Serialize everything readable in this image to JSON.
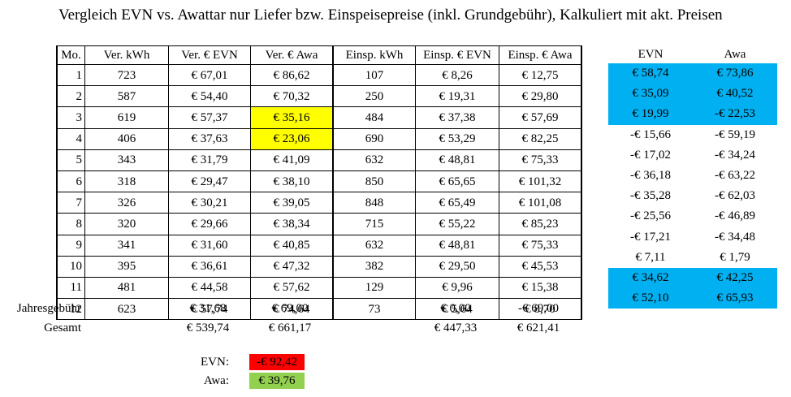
{
  "title": "Vergleich EVN vs. Awattar nur Liefer bzw. Einspeisepreise (inkl. Grundgebühr), Kalkuliert mit akt. Preisen",
  "headers": [
    "Mo.",
    "Ver. kWh",
    "Ver. € EVN",
    "Ver. € Awa",
    "Einsp. kWh",
    "Einsp. € EVN",
    "Einsp. € Awa"
  ],
  "rows": [
    [
      "1",
      "723",
      "€ 67,01",
      "€ 86,62",
      "107",
      "€ 8,26",
      "€ 12,75"
    ],
    [
      "2",
      "587",
      "€ 54,40",
      "€ 70,32",
      "250",
      "€ 19,31",
      "€ 29,80"
    ],
    [
      "3",
      "619",
      "€ 57,37",
      "€ 35,16",
      "484",
      "€ 37,38",
      "€ 57,69"
    ],
    [
      "4",
      "406",
      "€ 37,63",
      "€ 23,06",
      "690",
      "€ 53,29",
      "€ 82,25"
    ],
    [
      "5",
      "343",
      "€ 31,79",
      "€ 41,09",
      "632",
      "€ 48,81",
      "€ 75,33"
    ],
    [
      "6",
      "318",
      "€ 29,47",
      "€ 38,10",
      "850",
      "€ 65,65",
      "€ 101,32"
    ],
    [
      "7",
      "326",
      "€ 30,21",
      "€ 39,05",
      "848",
      "€ 65,49",
      "€ 101,08"
    ],
    [
      "8",
      "320",
      "€ 29,66",
      "€ 38,34",
      "715",
      "€ 55,22",
      "€ 85,23"
    ],
    [
      "9",
      "341",
      "€ 31,60",
      "€ 40,85",
      "632",
      "€ 48,81",
      "€ 75,33"
    ],
    [
      "10",
      "395",
      "€ 36,61",
      "€ 47,32",
      "382",
      "€ 29,50",
      "€ 45,53"
    ],
    [
      "11",
      "481",
      "€ 44,58",
      "€ 57,62",
      "129",
      "€ 9,96",
      "€ 15,38"
    ],
    [
      "12",
      "623",
      "€ 57,74",
      "€ 74,64",
      "73",
      "€ 5,64",
      "€ 8,70"
    ]
  ],
  "highlight_color": "#ffff00",
  "compare": {
    "headers": [
      "EVN",
      "Awa"
    ],
    "rows": [
      [
        "€ 58,74",
        "€ 73,86"
      ],
      [
        "€ 35,09",
        "€ 40,52"
      ],
      [
        "€ 19,99",
        "-€ 22,53"
      ],
      [
        "-€ 15,66",
        "-€ 59,19"
      ],
      [
        "-€ 17,02",
        "-€ 34,24"
      ],
      [
        "-€ 36,18",
        "-€ 63,22"
      ],
      [
        "-€ 35,28",
        "-€ 62,03"
      ],
      [
        "-€ 25,56",
        "-€ 46,89"
      ],
      [
        "-€ 17,21",
        "-€ 34,48"
      ],
      [
        "€ 7,11",
        "€ 1,79"
      ],
      [
        "€ 34,62",
        "€ 42,25"
      ],
      [
        "€ 52,10",
        "€ 65,93"
      ]
    ],
    "highlight_color": "#00b0f0"
  },
  "jahresgebuehr": {
    "label": "Jahresgebühr",
    "ver_evn": "€ 31,68",
    "ver_awa": "€ 69,00",
    "einsp_evn": "€ 0,00",
    "einsp_awa": "-€ 69,00"
  },
  "gesamt": {
    "label": "Gesamt",
    "ver_evn": "€ 539,74",
    "ver_awa": "€ 661,17",
    "einsp_evn": "€ 447,33",
    "einsp_awa": "€ 621,41"
  },
  "result": {
    "evn_label": "EVN:",
    "evn_value": "-€ 92,42",
    "evn_color": "#ff0000",
    "awa_label": "Awa:",
    "awa_value": "€ 39,76",
    "awa_color": "#92d050"
  }
}
